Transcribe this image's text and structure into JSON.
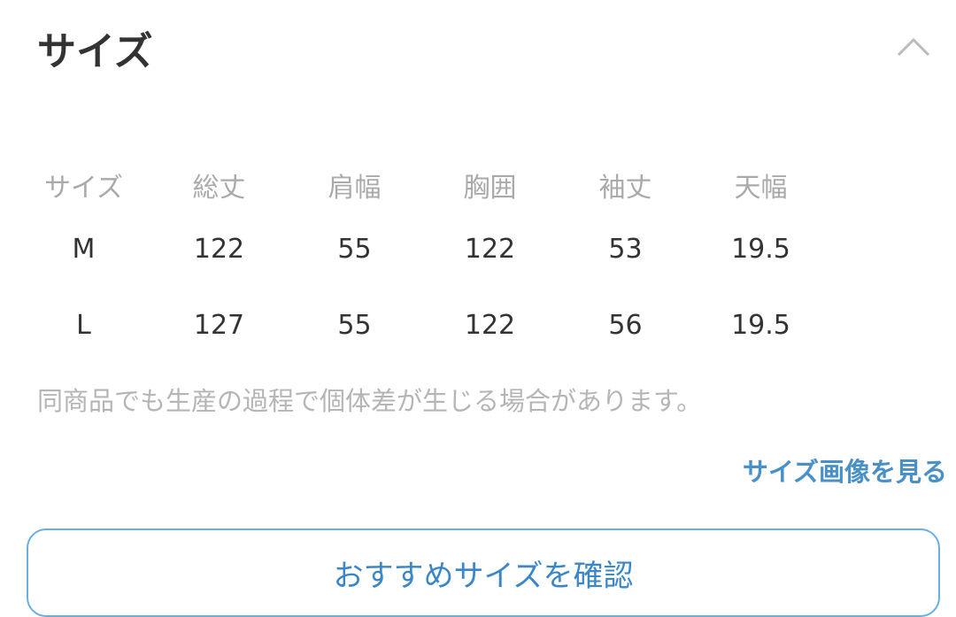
{
  "header": {
    "title": "サイズ",
    "collapse_icon": "chevron-up-icon"
  },
  "table": {
    "headers": [
      "サイズ",
      "総丈",
      "肩幅",
      "胸囲",
      "袖丈",
      "天幅"
    ],
    "rows": [
      [
        "M",
        "122",
        "55",
        "122",
        "53",
        "19.5"
      ],
      [
        "L",
        "127",
        "55",
        "122",
        "56",
        "19.5"
      ]
    ]
  },
  "note": "同商品でも生産の過程で個体差が生じる場合があります。",
  "size_image_link": "サイズ画像を見る",
  "recommend_button": "おすすめサイズを確認",
  "colors": {
    "accent": "#4a90c8"
  }
}
